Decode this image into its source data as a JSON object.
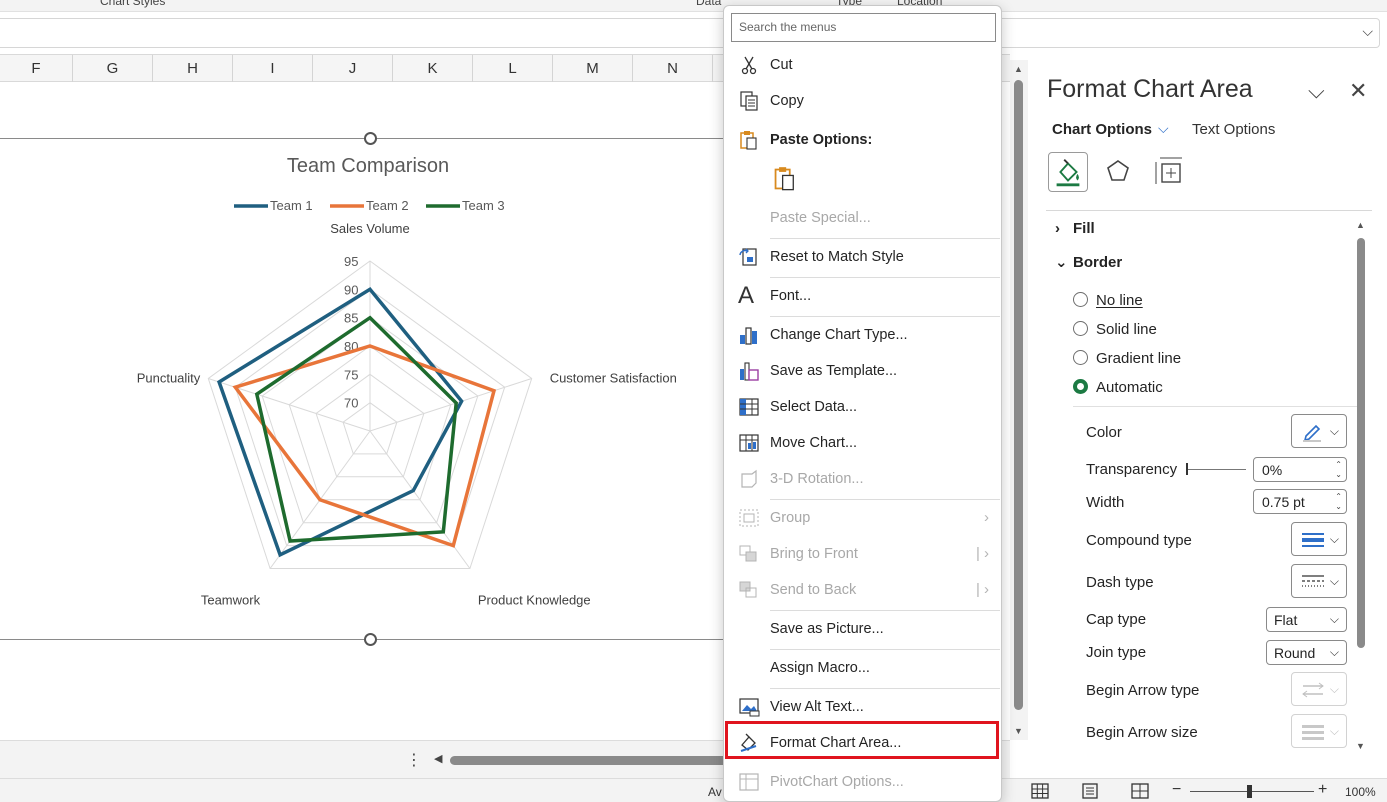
{
  "ribbon": {
    "group_chart_styles": "Chart Styles",
    "group_data": "Data",
    "group_type": "Type",
    "group_location": "Location"
  },
  "columns": [
    "F",
    "G",
    "H",
    "I",
    "J",
    "K",
    "L",
    "M",
    "N"
  ],
  "chart_data": {
    "type": "radar",
    "title": "Team Comparison",
    "categories": [
      "Sales Volume",
      "Customer Satisfaction",
      "Product Knowledge",
      "Teamwork",
      "Punctuality"
    ],
    "series": [
      {
        "name": "Team 1",
        "values": [
          90,
          82,
          78,
          92,
          93
        ]
      },
      {
        "name": "Team 2",
        "values": [
          80,
          88,
          90,
          80,
          90
        ]
      },
      {
        "name": "Team 3",
        "values": [
          85,
          81,
          87,
          89,
          86
        ]
      }
    ],
    "axis_ticks": [
      70,
      75,
      80,
      85,
      90,
      95
    ],
    "rlim": [
      65,
      95
    ],
    "legend_position": "top",
    "colors": {
      "Team 1": "#1f5f80",
      "Team 2": "#e8753a",
      "Team 3": "#1e6b2e",
      "grid": "#d9d9d9"
    }
  },
  "context_menu": {
    "search_placeholder": "Search the menus",
    "cut": "Cut",
    "copy": "Copy",
    "paste_options": "Paste Options:",
    "paste_special": "Paste Special...",
    "reset_style": "Reset to Match Style",
    "font": "Font...",
    "change_chart_type": "Change Chart Type...",
    "save_template": "Save as Template...",
    "select_data": "Select Data...",
    "move_chart": "Move Chart...",
    "rotation_3d": "3-D Rotation...",
    "group": "Group",
    "bring_to_front": "Bring to Front",
    "send_to_back": "Send to Back",
    "save_picture": "Save as Picture...",
    "assign_macro": "Assign Macro...",
    "view_alt_text": "View Alt Text...",
    "format_chart_area": "Format Chart Area...",
    "pivotchart_options": "PivotChart Options..."
  },
  "pane": {
    "title": "Format Chart Area",
    "tab_chart_options": "Chart Options",
    "tab_text_options": "Text Options",
    "section_fill": "Fill",
    "section_border": "Border",
    "radio_no_line": "No line",
    "radio_solid_line": "Solid line",
    "radio_gradient_line": "Gradient line",
    "radio_automatic": "Automatic",
    "prop_color": "Color",
    "prop_transparency": "Transparency",
    "transparency_value": "0%",
    "prop_width": "Width",
    "width_value": "0.75 pt",
    "prop_compound": "Compound type",
    "prop_dash": "Dash type",
    "prop_cap": "Cap type",
    "cap_value": "Flat",
    "prop_join": "Join type",
    "join_value": "Round",
    "prop_begin_arrow_type": "Begin Arrow type",
    "prop_begin_arrow_size": "Begin Arrow size"
  },
  "status": {
    "left_text": "Av",
    "zoom": "100%"
  }
}
